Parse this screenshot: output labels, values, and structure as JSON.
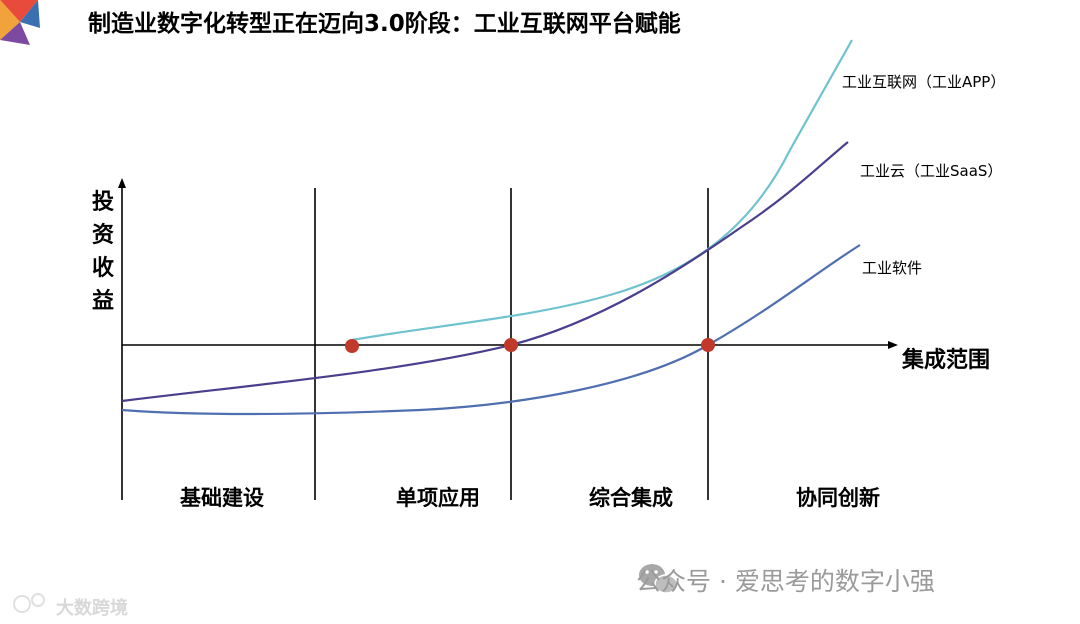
{
  "title": "制造业数字化转型正在迈向3.0阶段：工业互联网平台赋能",
  "y_axis_label": "投资收益",
  "x_axis_label": "集成范围",
  "stages": [
    "基础建设",
    "单项应用",
    "综合集成",
    "协同创新"
  ],
  "curves": [
    {
      "name": "工业互联网（工业APP）",
      "color": "#6ec3cf"
    },
    {
      "name": "工业云（工业SaaS）",
      "color": "#4a3f8e"
    },
    {
      "name": "工业软件",
      "color": "#4f6fb0"
    }
  ],
  "marker_color": "#c0392b",
  "watermark_right": "公众号 · 爱思考的数字小强",
  "watermark_left": "大数跨境"
}
